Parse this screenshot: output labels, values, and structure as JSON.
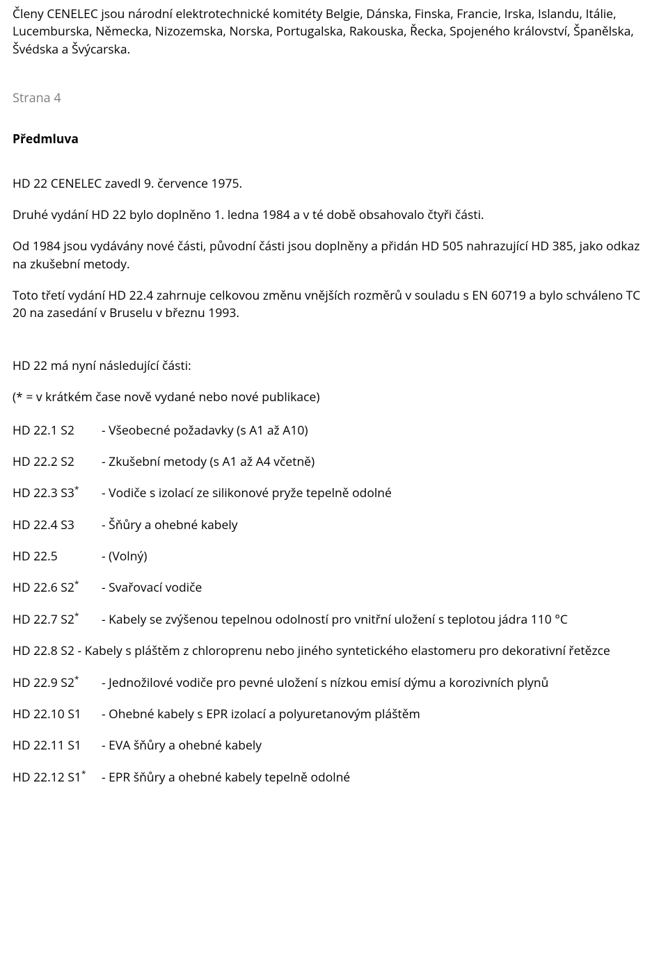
{
  "intro_para": "Členy CENELEC jsou národní elektrotechnické komitéty Belgie, Dánska, Finska, Francie, Irska, Islandu, Itálie, Lucemburska, Německa, Nizozemska, Norska, Portugalska, Rakouska, Řecka, Spojeného království, Španělska, Švédska a Švýcarska.",
  "page_label": "Strana 4",
  "heading": "Předmluva",
  "p1": "HD 22 CENELEC zavedl 9. července 1975.",
  "p2": "Druhé vydání HD 22 bylo doplněno 1. ledna 1984 a v té době obsahovalo čtyři části.",
  "p3": "Od 1984 jsou vydávány nové části, původní části jsou doplněny a přidán HD 505 nahrazující HD 385, jako odkaz na zkušební metody.",
  "p4": "Toto třetí vydání HD 22.4 zahrnuje celkovou změnu vnějších rozměrů v souladu s EN 60719 a bylo schváleno TC 20 na zasedání v Bruselu v březnu 1993.",
  "parts_intro": "HD 22 má nyní následující části:",
  "parts_note": "(* = v krátkém čase nově vydané nebo nové publikace)",
  "parts": [
    {
      "code": "HD 22.1 S2",
      "star": false,
      "desc": "- Všeobecné požadavky (s A1 až A10)"
    },
    {
      "code": "HD 22.2 S2",
      "star": false,
      "desc": "- Zkušební metody (s A1 až A4 včetně)"
    },
    {
      "code": "HD 22.3 S3",
      "star": true,
      "desc": "- Vodiče s izolací ze silikonové pryže tepelně odolné"
    },
    {
      "code": "HD 22.4 S3",
      "star": false,
      "desc": "- Šňůry a ohebné kabely"
    },
    {
      "code": "HD 22.5",
      "star": false,
      "desc": "- (Volný)"
    },
    {
      "code": "HD 22.6 S2",
      "star": true,
      "desc": "- Svařovací vodiče"
    },
    {
      "code": "HD 22.7 S2",
      "star": true,
      "desc": "- Kabely se zvýšenou tepelnou odolností pro vnitřní uložení s teplotou jádra 110 °C"
    },
    {
      "code": "HD 22.8 S2",
      "star": false,
      "desc": "- Kabely s pláštěm z chloroprenu nebo jiného syntetického elastomeru pro dekorativní řetězce",
      "wrap": true
    },
    {
      "code": "HD 22.9 S2",
      "star": true,
      "desc": "- Jednožilové vodiče pro pevné uložení s nízkou emisí dýmu a korozivních plynů"
    },
    {
      "code": "HD 22.10 S1",
      "star": false,
      "desc": "- Ohebné kabely s EPR izolací a polyuretanovým pláštěm"
    },
    {
      "code": "HD 22.11 S1",
      "star": false,
      "desc": "- EVA šňůry a ohebné kabely"
    },
    {
      "code": "HD 22.12 S1",
      "star": true,
      "desc": "- EPR šňůry a ohebné kabely tepelně odolné"
    }
  ]
}
